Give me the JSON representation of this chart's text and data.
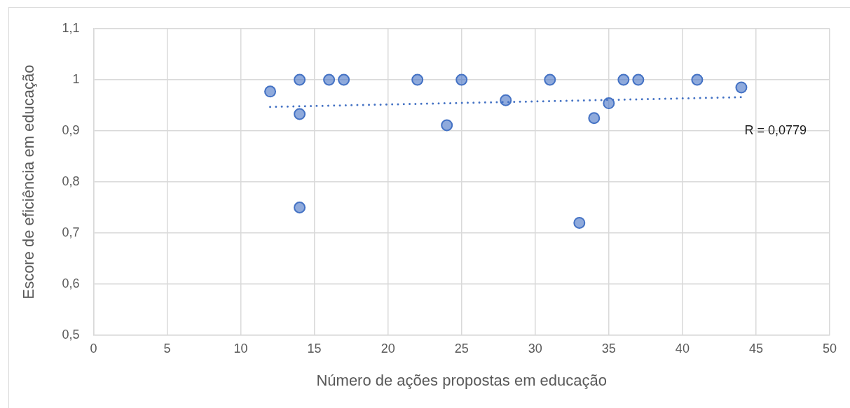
{
  "chart_data": {
    "type": "scatter",
    "xlabel": "Número de ações propostas em educação",
    "ylabel": "Escore de eficiência em educação",
    "annotations": [
      "R = 0,0779"
    ],
    "series": [
      {
        "type": "scatter",
        "color": "#4472c4",
        "marker": "circle",
        "x": [
          12,
          14,
          14,
          14,
          16,
          17,
          22,
          24,
          25,
          28,
          31,
          33,
          34,
          35,
          36,
          37,
          41,
          44
        ],
        "values": [
          0.977,
          1,
          0.933,
          0.75,
          1,
          1,
          1,
          0.911,
          1,
          0.96,
          1,
          0.72,
          0.925,
          0.954,
          1,
          1,
          1,
          0.985
        ]
      },
      {
        "type": "line",
        "color": "#4472c4",
        "marker": "none",
        "line_style": "dotted",
        "x": [
          12,
          44
        ],
        "values": [
          0.947,
          0.966
        ]
      }
    ],
    "xlim": [
      0,
      50
    ],
    "xticks": [
      0,
      5,
      10,
      15,
      20,
      25,
      30,
      35,
      40,
      45,
      50
    ],
    "ylim": [
      0.5,
      1.1
    ],
    "yticks": [
      {
        "value": 0.5,
        "label": "0,5"
      },
      {
        "value": 0.6,
        "label": "0,6"
      },
      {
        "value": 0.7,
        "label": "0,7"
      },
      {
        "value": 0.8,
        "label": "0,8"
      },
      {
        "value": 0.9,
        "label": "0,9"
      },
      1,
      {
        "value": 1.1,
        "label": "1,1"
      }
    ],
    "grid": true,
    "legend": false
  }
}
